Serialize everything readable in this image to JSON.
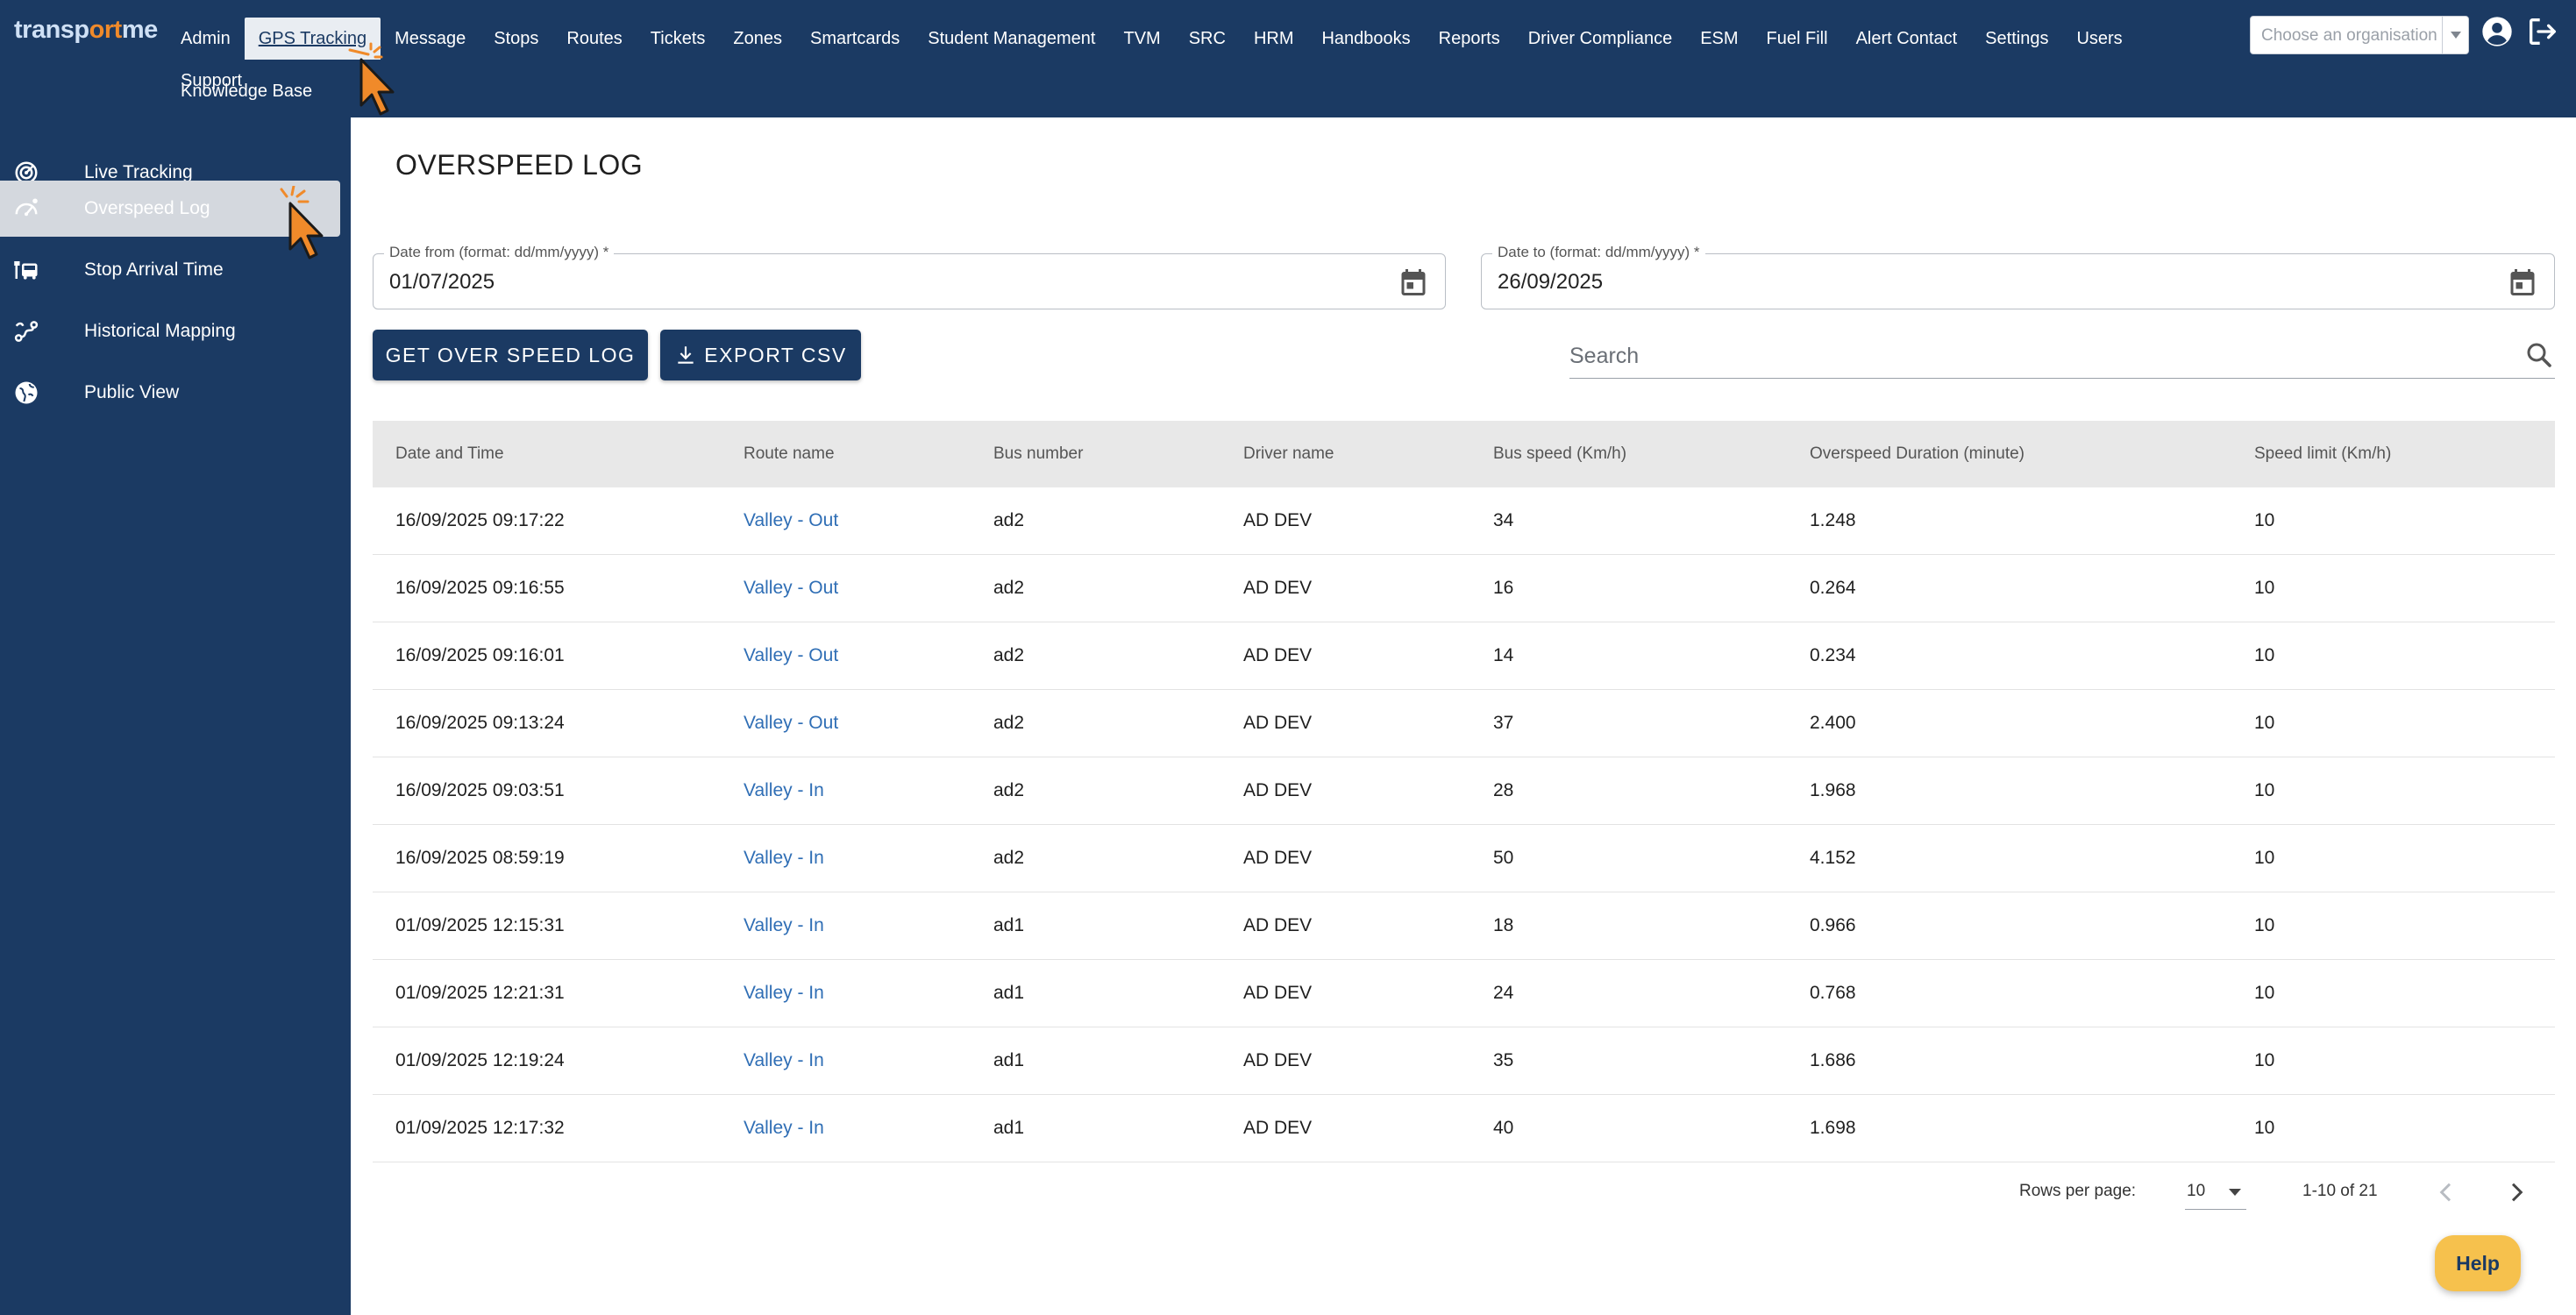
{
  "brand": {
    "logo_part1": "transp",
    "logo_part2": "ort",
    "logo_part3": "me"
  },
  "top_nav": {
    "items": [
      "Admin",
      "GPS Tracking",
      "Message",
      "Stops",
      "Routes",
      "Tickets",
      "Zones",
      "Smartcards",
      "Student Management",
      "TVM",
      "SRC",
      "HRM",
      "Handbooks",
      "Reports",
      "Driver Compliance",
      "ESM",
      "Fuel Fill",
      "Alert Contact",
      "Settings",
      "Users",
      "Support"
    ],
    "row2": "Knowledge Base",
    "active": "GPS Tracking",
    "org_placeholder": "Choose an organisation"
  },
  "sidebar": {
    "items": [
      {
        "label": "Live Tracking",
        "icon": "radar-icon"
      },
      {
        "label": "Overspeed Log",
        "icon": "speedometer-icon"
      },
      {
        "label": "Stop Arrival Time",
        "icon": "bus-stop-icon"
      },
      {
        "label": "Historical Mapping",
        "icon": "route-map-icon"
      },
      {
        "label": "Public View",
        "icon": "globe-icon"
      }
    ],
    "active": "Overspeed Log"
  },
  "page": {
    "title": "OVERSPEED LOG",
    "date_from": {
      "label": "Date from (format: dd/mm/yyyy) *",
      "value": "01/07/2025"
    },
    "date_to": {
      "label": "Date to (format: dd/mm/yyyy) *",
      "value": "26/09/2025"
    },
    "get_button": "GET OVER SPEED LOG",
    "export_button": "EXPORT CSV",
    "search_placeholder": "Search"
  },
  "table": {
    "headers": [
      "Date and Time",
      "Route name",
      "Bus number",
      "Driver name",
      "Bus speed (Km/h)",
      "Overspeed Duration (minute)",
      "Speed limit (Km/h)"
    ],
    "rows": [
      [
        "16/09/2025 09:17:22",
        "Valley - Out",
        "ad2",
        "AD DEV",
        "34",
        "1.248",
        "10"
      ],
      [
        "16/09/2025 09:16:55",
        "Valley - Out",
        "ad2",
        "AD DEV",
        "16",
        "0.264",
        "10"
      ],
      [
        "16/09/2025 09:16:01",
        "Valley - Out",
        "ad2",
        "AD DEV",
        "14",
        "0.234",
        "10"
      ],
      [
        "16/09/2025 09:13:24",
        "Valley - Out",
        "ad2",
        "AD DEV",
        "37",
        "2.400",
        "10"
      ],
      [
        "16/09/2025 09:03:51",
        "Valley - In",
        "ad2",
        "AD DEV",
        "28",
        "1.968",
        "10"
      ],
      [
        "16/09/2025 08:59:19",
        "Valley - In",
        "ad2",
        "AD DEV",
        "50",
        "4.152",
        "10"
      ],
      [
        "01/09/2025 12:15:31",
        "Valley - In",
        "ad1",
        "AD DEV",
        "18",
        "0.966",
        "10"
      ],
      [
        "01/09/2025 12:21:31",
        "Valley - In",
        "ad1",
        "AD DEV",
        "24",
        "0.768",
        "10"
      ],
      [
        "01/09/2025 12:19:24",
        "Valley - In",
        "ad1",
        "AD DEV",
        "35",
        "1.686",
        "10"
      ],
      [
        "01/09/2025 12:17:32",
        "Valley - In",
        "ad1",
        "AD DEV",
        "40",
        "1.698",
        "10"
      ]
    ]
  },
  "pagination": {
    "rows_per_page_label": "Rows per page:",
    "rows_per_page": "10",
    "range": "1-10 of 21"
  },
  "help": "Help",
  "colors": {
    "nav_bg": "#1b3a63",
    "link": "#2f6eb5",
    "accent_orange": "#f08a2a",
    "help_bg": "#f6c14d"
  }
}
